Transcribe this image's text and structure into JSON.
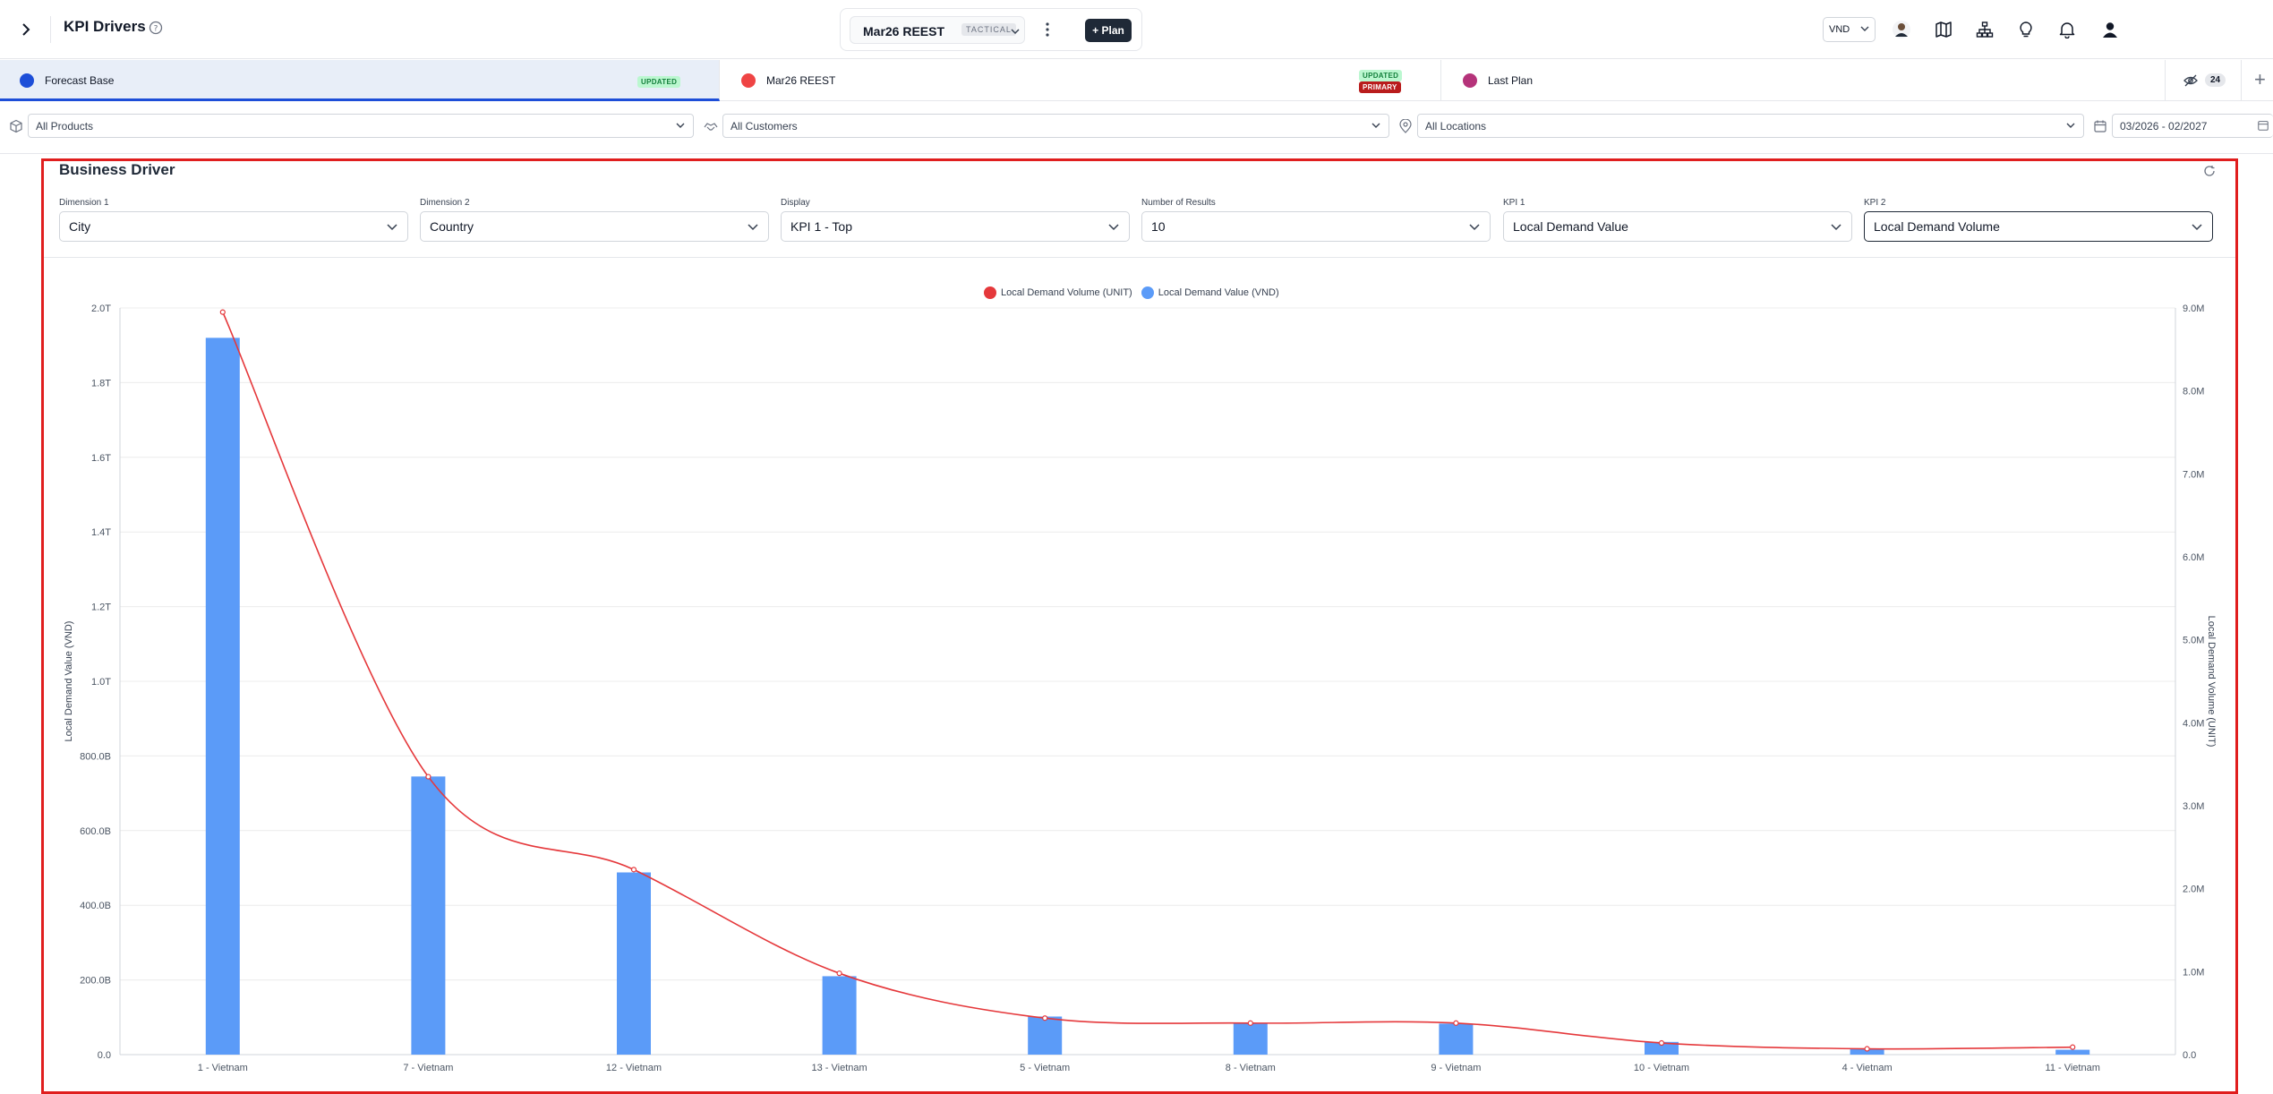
{
  "header": {
    "title": "KPI Drivers",
    "plan": {
      "name": "Mar26 REEST",
      "tag": "TACTICAL",
      "add_label": "+ Plan"
    },
    "currency": "VND"
  },
  "scenarios": [
    {
      "label": "Forecast Base",
      "color": "#1d4ed8",
      "badges": [
        "UPDATED"
      ],
      "active": true
    },
    {
      "label": "Mar26 REEST",
      "color": "#ef4444",
      "badges": [
        "UPDATED",
        "PRIMARY"
      ],
      "active": false
    },
    {
      "label": "Last Plan",
      "color": "#b5337a",
      "badges": [],
      "active": false
    }
  ],
  "hidden_count": "24",
  "filters": {
    "products": "All Products",
    "customers": "All Customers",
    "locations": "All Locations",
    "date_range": "03/2026 - 02/2027"
  },
  "card": {
    "title": "Business Driver",
    "controls": [
      {
        "label": "Dimension 1",
        "value": "City"
      },
      {
        "label": "Dimension 2",
        "value": "Country"
      },
      {
        "label": "Display",
        "value": "KPI 1 - Top"
      },
      {
        "label": "Number of Results",
        "value": "10"
      },
      {
        "label": "KPI 1",
        "value": "Local Demand Value"
      },
      {
        "label": "KPI 2",
        "value": "Local Demand Volume"
      }
    ]
  },
  "chart_data": {
    "type": "bar",
    "categories": [
      "1 - Vietnam",
      "7 - Vietnam",
      "12 - Vietnam",
      "13 - Vietnam",
      "5 - Vietnam",
      "8 - Vietnam",
      "9 - Vietnam",
      "10 - Vietnam",
      "4 - Vietnam",
      "11 - Vietnam"
    ],
    "series": [
      {
        "name": "Local Demand Value (VND)",
        "type": "bar",
        "axis": "left",
        "color": "#5b9bf8",
        "values": [
          1920000000000.0,
          745000000000.0,
          488000000000.0,
          210000000000.0,
          102000000000.0,
          85000000000.0,
          83000000000.0,
          34000000000.0,
          15000000000.0,
          13000000000.0
        ]
      },
      {
        "name": "Local Demand Volume (UNIT)",
        "type": "line",
        "axis": "right",
        "color": "#e5383b",
        "values": [
          8950000.0,
          3350000.0,
          2230000.0,
          980000.0,
          440000.0,
          380000.0,
          380000.0,
          140000.0,
          70000.0,
          90000.0
        ]
      }
    ],
    "legend_order": [
      "Local Demand Volume (UNIT)",
      "Local Demand Value (VND)"
    ],
    "legend_position": "top-center",
    "ylabel": "Local Demand Value (VND)",
    "y2label": "Local Demand Volume (UNIT)",
    "ylim": [
      0,
      2000000000000.0
    ],
    "y2lim": [
      0,
      9000000.0
    ],
    "yticks": [
      "0.0",
      "200.0B",
      "400.0B",
      "600.0B",
      "800.0B",
      "1.0T",
      "1.2T",
      "1.4T",
      "1.6T",
      "1.8T",
      "2.0T"
    ],
    "y2ticks": [
      "0.0",
      "1.0M",
      "2.0M",
      "3.0M",
      "4.0M",
      "5.0M",
      "6.0M",
      "7.0M",
      "8.0M",
      "9.0M"
    ],
    "grid": true
  }
}
